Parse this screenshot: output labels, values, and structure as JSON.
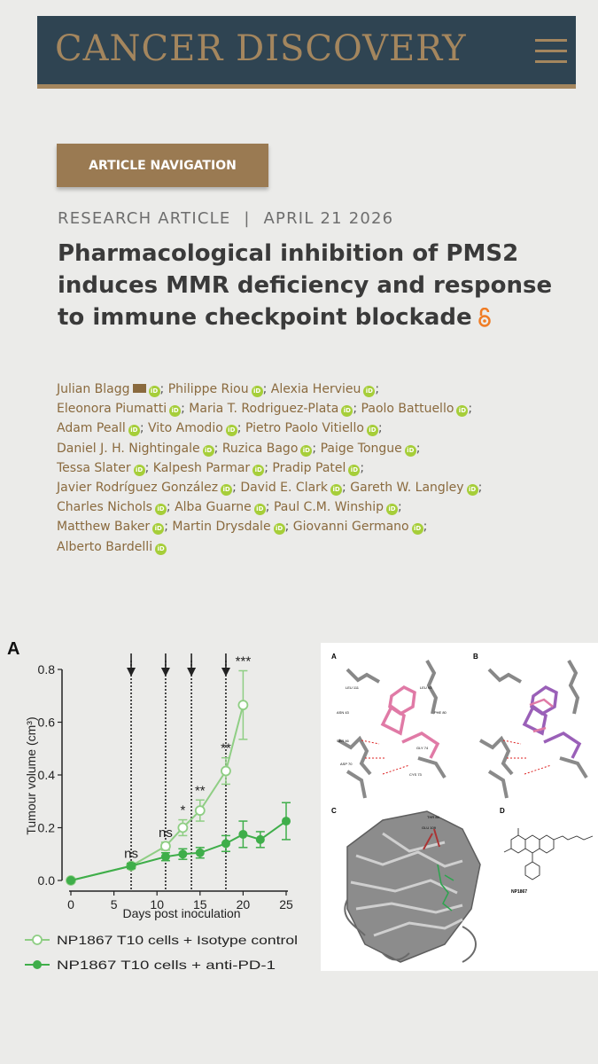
{
  "header": {
    "logo": "CANCER DISCOVERY",
    "menu_icon": "hamburger-menu-icon",
    "brand_color": "#a4865e",
    "bar_color": "#2f4452"
  },
  "nav_button": {
    "label": "ARTICLE NAVIGATION"
  },
  "article": {
    "type": "RESEARCH ARTICLE",
    "divider": "|",
    "date": "APRIL 21 2026",
    "title": "Pharmacological inhibition of PMS2 induces MMR deficiency and response to immune checkpoint blockade",
    "open_access_icon": "open-access-icon"
  },
  "authors": [
    [
      "Julian Blagg",
      "Philippe Riou",
      "Alexia Hervieu"
    ],
    [
      "Eleonora Piumatti",
      "Maria T. Rodriguez-Plata",
      "Paolo Battuello"
    ],
    [
      "Adam Peall",
      "Vito Amodio",
      "Pietro Paolo Vitiello"
    ],
    [
      "Daniel J. H. Nightingale",
      "Ruzica Bago",
      "Paige Tongue"
    ],
    [
      "Tessa Slater",
      "Kalpesh Parmar",
      "Pradip Patel"
    ],
    [
      "Javier Rodríguez González",
      "David E. Clark",
      "Gareth W. Langley"
    ],
    [
      "Charles Nichols",
      "Alba Guarne",
      "Paul C.M. Winship"
    ],
    [
      "Matthew Baker",
      "Martin Drysdale",
      "Giovanni Germano"
    ],
    [
      "Alberto Bardelli"
    ]
  ],
  "orcid_label": "iD",
  "figure": {
    "panel_label": "A",
    "panel_labels_right": [
      "A",
      "B",
      "C",
      "D"
    ],
    "compound_label": "NP1867",
    "residue_labels": [
      "LEU 111",
      "LEU 93",
      "PHE 80",
      "ASN 43",
      "SER 46",
      "GLY 74",
      "ASP 70",
      "CYS 73",
      "THR 84",
      "GLU 109"
    ]
  },
  "chart_data": {
    "type": "line",
    "xlabel": "Days post inoculation",
    "ylabel": "Tumour volume (cm³)",
    "xlim": [
      0,
      25
    ],
    "ylim": [
      0,
      0.8
    ],
    "xticks": [
      "0",
      "5",
      "10",
      "15",
      "20",
      "25"
    ],
    "yticks": [
      "0.0",
      "0.2",
      "0.4",
      "0.6",
      "0.8"
    ],
    "dosing_days": [
      7,
      11,
      14,
      18
    ],
    "series": [
      {
        "name": "NP1867 T10 cells + Isotype control",
        "marker": "open-circle",
        "color": "#8fce84",
        "x": [
          0,
          7,
          11,
          13,
          15,
          18,
          20
        ],
        "y": [
          0.0,
          0.055,
          0.13,
          0.2,
          0.265,
          0.415,
          0.665
        ],
        "err": [
          0,
          0.01,
          0.015,
          0.03,
          0.04,
          0.05,
          0.13
        ]
      },
      {
        "name": "NP1867 T10 cells + anti-PD-1",
        "marker": "filled-circle",
        "color": "#3fae4a",
        "x": [
          0,
          7,
          11,
          13,
          15,
          18,
          20,
          22,
          25
        ],
        "y": [
          0.0,
          0.055,
          0.09,
          0.1,
          0.105,
          0.14,
          0.175,
          0.155,
          0.225
        ],
        "err": [
          0,
          0.01,
          0.015,
          0.02,
          0.02,
          0.03,
          0.05,
          0.03,
          0.07
        ]
      }
    ],
    "significance": [
      {
        "x": 7,
        "label": "ns"
      },
      {
        "x": 11,
        "label": "ns"
      },
      {
        "x": 13,
        "label": "*"
      },
      {
        "x": 15,
        "label": "**"
      },
      {
        "x": 18,
        "label": "**"
      },
      {
        "x": 20,
        "label": "***"
      }
    ]
  }
}
